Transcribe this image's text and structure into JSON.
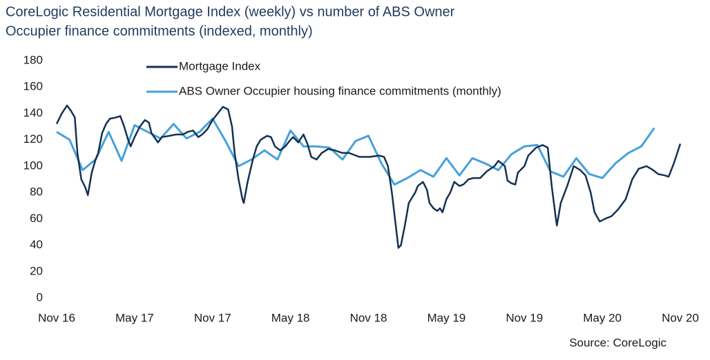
{
  "chart_data": {
    "type": "line",
    "title": "CoreLogic Residential Mortgage Index (weekly) vs number of ABS Owner Occupier finance commitments (indexed, monthly)",
    "title_lines": [
      "CoreLogic Residential Mortgage Index (weekly) vs number of ABS Owner",
      "Occupier finance commitments (indexed, monthly)"
    ],
    "source": "Source: CoreLogic",
    "xlim": [
      0,
      48
    ],
    "xticks": [
      {
        "value": 0,
        "label": "Nov 16"
      },
      {
        "value": 6,
        "label": "May 17"
      },
      {
        "value": 12,
        "label": "Nov 17"
      },
      {
        "value": 18,
        "label": "May 18"
      },
      {
        "value": 24,
        "label": "Nov 18"
      },
      {
        "value": 30,
        "label": "May 19"
      },
      {
        "value": 36,
        "label": "Nov 19"
      },
      {
        "value": 42,
        "label": "May 20"
      },
      {
        "value": 48,
        "label": "Nov 20"
      }
    ],
    "ylim": [
      0,
      180
    ],
    "yticks": [
      0,
      20,
      40,
      60,
      80,
      100,
      120,
      140,
      160,
      180
    ],
    "grid": false,
    "legend": "top",
    "series": [
      {
        "name": "Mortgage Index",
        "color": "#14304f",
        "x": [
          0,
          0.4,
          0.8,
          1.1,
          1.4,
          1.6,
          1.9,
          2.2,
          2.4,
          2.7,
          3.0,
          3.2,
          3.5,
          3.8,
          4.1,
          4.6,
          4.9,
          5.2,
          5.5,
          5.7,
          6.0,
          6.4,
          6.8,
          7.1,
          7.3,
          7.8,
          8.1,
          8.7,
          9.2,
          9.7,
          10.1,
          10.5,
          10.9,
          11.2,
          11.6,
          12.0,
          12.4,
          12.8,
          13.2,
          13.5,
          13.7,
          14.0,
          14.3,
          14.4,
          14.7,
          15.1,
          15.4,
          15.7,
          16.2,
          16.5,
          16.8,
          17.2,
          17.6,
          18.0,
          18.2,
          18.6,
          19.0,
          19.3,
          19.6,
          20.0,
          20.4,
          20.9,
          21.4,
          22.0,
          22.5,
          23.3,
          24.1,
          24.8,
          25.2,
          25.5,
          25.8,
          26.1,
          26.3,
          26.5,
          26.8,
          27.1,
          27.6,
          27.8,
          28.2,
          28.5,
          28.7,
          29.0,
          29.3,
          29.5,
          29.7,
          30.0,
          30.3,
          30.6,
          31.0,
          31.3,
          31.7,
          32.1,
          32.6,
          33.1,
          33.7,
          34.0,
          34.5,
          34.7,
          35.0,
          35.3,
          35.5,
          36.0,
          36.3,
          36.9,
          37.4,
          37.8,
          38.1,
          38.4,
          38.5,
          38.8,
          39.3,
          39.8,
          40.3,
          40.7,
          41.1,
          41.4,
          41.8,
          42.2,
          42.7,
          43.2,
          43.8,
          44.3,
          44.8,
          45.4,
          45.9,
          46.3,
          46.8,
          47.1,
          47.5,
          48.0
        ],
        "values": [
          132,
          140,
          146,
          142,
          137,
          110,
          90,
          84,
          78,
          95,
          105,
          110,
          125,
          132,
          136,
          137,
          138,
          130,
          120,
          115,
          122,
          130,
          135,
          133,
          125,
          118,
          122,
          123,
          124,
          124,
          126,
          127,
          122,
          124,
          128,
          135,
          140,
          145,
          143,
          130,
          110,
          90,
          75,
          72,
          88,
          105,
          115,
          120,
          123,
          122,
          115,
          112,
          115,
          120,
          122,
          118,
          124,
          117,
          107,
          105,
          110,
          113,
          112,
          110,
          110,
          107,
          107,
          108,
          107,
          100,
          80,
          55,
          38,
          40,
          55,
          72,
          80,
          85,
          88,
          82,
          72,
          68,
          66,
          68,
          65,
          75,
          80,
          88,
          85,
          86,
          90,
          91,
          91,
          96,
          100,
          104,
          100,
          89,
          87,
          86,
          95,
          100,
          108,
          114,
          116,
          114,
          85,
          62,
          55,
          72,
          85,
          100,
          97,
          93,
          80,
          65,
          58,
          60,
          62,
          67,
          75,
          90,
          98,
          100,
          97,
          94,
          93,
          92,
          102,
          117
        ]
      },
      {
        "name": "ABS Owner Occupier housing finance commitments (monthly)",
        "color": "#45a1d9",
        "x": [
          0,
          1,
          2,
          3,
          4,
          5,
          6,
          7,
          8,
          9,
          10,
          11,
          12,
          13,
          14,
          15,
          16,
          17,
          18,
          19,
          20,
          21,
          22,
          23,
          24,
          25,
          26,
          27,
          28,
          29,
          30,
          31,
          32,
          33,
          34,
          35,
          36,
          37,
          38,
          39,
          40,
          41,
          42,
          43,
          44,
          45,
          46
        ],
        "values": [
          126,
          120,
          97,
          105,
          126,
          104,
          131,
          126,
          121,
          132,
          121,
          126,
          136,
          119,
          100,
          105,
          112,
          105,
          127,
          115,
          115,
          114,
          105,
          119,
          123,
          102,
          86,
          91,
          97,
          92,
          106,
          93,
          106,
          102,
          97,
          109,
          115,
          116,
          96,
          92,
          106,
          94,
          91,
          102,
          110,
          115,
          129
        ]
      }
    ]
  }
}
